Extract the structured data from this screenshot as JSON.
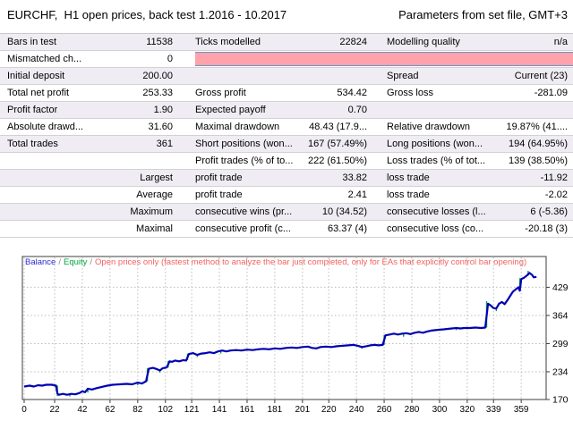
{
  "header": {
    "title": "EURCHF,  H1 open prices, back test 1.2016 - 10.2017",
    "params": "Parameters from set file, GMT+3"
  },
  "table": {
    "rows": [
      {
        "c1": "Bars in test",
        "c2": "11538",
        "c3": "Ticks modelled",
        "c4": "22824",
        "c5": "Modelling quality",
        "c6": "n/a",
        "shade": true,
        "bar": false
      },
      {
        "c1": "Mismatched ch...",
        "c2": "0",
        "c3": "",
        "c4": "",
        "c5": "",
        "c6": "",
        "shade": false,
        "bar": true
      },
      {
        "c1": "Initial deposit",
        "c2": "200.00",
        "c3": "",
        "c4": "",
        "c5": "Spread",
        "c6": "Current (23)",
        "shade": true,
        "bar": false
      },
      {
        "c1": "Total net profit",
        "c2": "253.33",
        "c3": "Gross profit",
        "c4": "534.42",
        "c5": "Gross loss",
        "c6": "-281.09",
        "shade": false,
        "bar": false
      },
      {
        "c1": "Profit factor",
        "c2": "1.90",
        "c3": "Expected payoff",
        "c4": "0.70",
        "c5": "",
        "c6": "",
        "shade": true,
        "bar": false
      },
      {
        "c1": "Absolute drawd...",
        "c2": "31.60",
        "c3": "Maximal drawdown",
        "c4": "48.43 (17.9...",
        "c5": "Relative drawdown",
        "c6": "19.87% (41....",
        "shade": false,
        "bar": false
      },
      {
        "c1": "Total trades",
        "c2": "361",
        "c3": "Short positions (won...",
        "c4": "167 (57.49%)",
        "c5": "Long positions (won...",
        "c6": "194 (64.95%)",
        "shade": true,
        "bar": false
      },
      {
        "c1": "",
        "c2": "",
        "c3": "Profit trades (% of to...",
        "c4": "222 (61.50%)",
        "c5": "Loss trades (% of tot...",
        "c6": "139 (38.50%)",
        "shade": false,
        "bar": false
      },
      {
        "c1": "",
        "c2": "Largest",
        "c3": "profit trade",
        "c4": "33.82",
        "c5": "loss trade",
        "c6": "-11.92",
        "shade": true,
        "bar": false
      },
      {
        "c1": "",
        "c2": "Average",
        "c3": "profit trade",
        "c4": "2.41",
        "c5": "loss trade",
        "c6": "-2.02",
        "shade": false,
        "bar": false
      },
      {
        "c1": "",
        "c2": "Maximum",
        "c3": "consecutive wins (pr...",
        "c4": "10 (34.52)",
        "c5": "consecutive losses (l...",
        "c6": "6 (-5.36)",
        "shade": true,
        "bar": false
      },
      {
        "c1": "",
        "c2": "Maximal",
        "c3": "consecutive profit (c...",
        "c4": "63.37 (4)",
        "c5": "consecutive loss (co...",
        "c6": "-20.18 (3)",
        "shade": false,
        "bar": false
      }
    ]
  },
  "chart_data": {
    "type": "line",
    "legend": {
      "balance_label": "Balance",
      "separator": "/",
      "equity_label": "Equity",
      "note": "Open prices only (fastest method to analyze the bar just completed, only for EAs that explicitly control bar opening)"
    },
    "x_ticks": [
      0,
      22,
      42,
      62,
      82,
      102,
      121,
      141,
      161,
      181,
      201,
      220,
      240,
      260,
      280,
      300,
      320,
      339,
      359
    ],
    "y_ticks": [
      429,
      364,
      299,
      234,
      170
    ],
    "x_domain": [
      0,
      377
    ],
    "y_domain": [
      170,
      500
    ],
    "grid": true,
    "legend_position": "top-left",
    "series": [
      {
        "name": "Balance",
        "color": "#0000b4",
        "points": [
          [
            0,
            200
          ],
          [
            4,
            202
          ],
          [
            7,
            200
          ],
          [
            10,
            203
          ],
          [
            13,
            202
          ],
          [
            16,
            204
          ],
          [
            20,
            204
          ],
          [
            23,
            202
          ],
          [
            24,
            184
          ],
          [
            25,
            181
          ],
          [
            28,
            183
          ],
          [
            31,
            181
          ],
          [
            34,
            183
          ],
          [
            37,
            182
          ],
          [
            40,
            185
          ],
          [
            42,
            189
          ],
          [
            44,
            187
          ],
          [
            46,
            195
          ],
          [
            49,
            193
          ],
          [
            52,
            196
          ],
          [
            56,
            199
          ],
          [
            60,
            202
          ],
          [
            64,
            204
          ],
          [
            69,
            205
          ],
          [
            74,
            206
          ],
          [
            78,
            205
          ],
          [
            82,
            209
          ],
          [
            85,
            207
          ],
          [
            88,
            212
          ],
          [
            90,
            241
          ],
          [
            93,
            243
          ],
          [
            96,
            240
          ],
          [
            98,
            237
          ],
          [
            100,
            242
          ],
          [
            103,
            244
          ],
          [
            105,
            258
          ],
          [
            107,
            257
          ],
          [
            109,
            260
          ],
          [
            112,
            258
          ],
          [
            115,
            261
          ],
          [
            117,
            260
          ],
          [
            119,
            275
          ],
          [
            122,
            277
          ],
          [
            125,
            273
          ],
          [
            128,
            276
          ],
          [
            131,
            277
          ],
          [
            134,
            279
          ],
          [
            137,
            277
          ],
          [
            140,
            281
          ],
          [
            143,
            283
          ],
          [
            146,
            281
          ],
          [
            149,
            283
          ],
          [
            153,
            284
          ],
          [
            157,
            283
          ],
          [
            161,
            285
          ],
          [
            165,
            284
          ],
          [
            169,
            286
          ],
          [
            173,
            287
          ],
          [
            177,
            286
          ],
          [
            181,
            288
          ],
          [
            185,
            287
          ],
          [
            189,
            289
          ],
          [
            193,
            290
          ],
          [
            197,
            289
          ],
          [
            201,
            291
          ],
          [
            205,
            292
          ],
          [
            208,
            289
          ],
          [
            211,
            288
          ],
          [
            214,
            291
          ],
          [
            218,
            292
          ],
          [
            222,
            291
          ],
          [
            226,
            293
          ],
          [
            230,
            294
          ],
          [
            234,
            295
          ],
          [
            238,
            296
          ],
          [
            241,
            294
          ],
          [
            244,
            291
          ],
          [
            247,
            293
          ],
          [
            250,
            295
          ],
          [
            253,
            296
          ],
          [
            256,
            295
          ],
          [
            259,
            296
          ],
          [
            261,
            318
          ],
          [
            264,
            320
          ],
          [
            267,
            322
          ],
          [
            270,
            320
          ],
          [
            273,
            322
          ],
          [
            276,
            323
          ],
          [
            279,
            321
          ],
          [
            282,
            324
          ],
          [
            285,
            326
          ],
          [
            288,
            324
          ],
          [
            291,
            327
          ],
          [
            294,
            329
          ],
          [
            297,
            330
          ],
          [
            300,
            331
          ],
          [
            303,
            332
          ],
          [
            306,
            333
          ],
          [
            309,
            334
          ],
          [
            312,
            335
          ],
          [
            315,
            334
          ],
          [
            318,
            335
          ],
          [
            322,
            335
          ],
          [
            326,
            336
          ],
          [
            330,
            335
          ],
          [
            333,
            336
          ],
          [
            335,
            391
          ],
          [
            337,
            387
          ],
          [
            339,
            381
          ],
          [
            341,
            380
          ],
          [
            343,
            391
          ],
          [
            345,
            395
          ],
          [
            347,
            390
          ],
          [
            349,
            399
          ],
          [
            351,
            409
          ],
          [
            353,
            419
          ],
          [
            355,
            424
          ],
          [
            357,
            429
          ],
          [
            358,
            421
          ],
          [
            359,
            448
          ],
          [
            361,
            451
          ],
          [
            363,
            456
          ],
          [
            365,
            462
          ],
          [
            367,
            457
          ],
          [
            368,
            452
          ],
          [
            370,
            453
          ]
        ]
      },
      {
        "name": "Equity",
        "color": "#00a63c",
        "spikes": [
          [
            24,
            178,
            202
          ],
          [
            33,
            177,
            184
          ],
          [
            46,
            186,
            196
          ],
          [
            82,
            203,
            210
          ],
          [
            89,
            212,
            242
          ],
          [
            98,
            232,
            240
          ],
          [
            104,
            244,
            259
          ],
          [
            118,
            261,
            276
          ],
          [
            125,
            268,
            274
          ],
          [
            142,
            276,
            284
          ],
          [
            244,
            287,
            293
          ],
          [
            260,
            296,
            319
          ],
          [
            274,
            315,
            322
          ],
          [
            312,
            330,
            336
          ],
          [
            334,
            336,
            397
          ],
          [
            341,
            374,
            382
          ],
          [
            358,
            420,
            450
          ],
          [
            364,
            456,
            467
          ]
        ]
      }
    ]
  },
  "colors": {
    "row_shade": "#efedf3",
    "bar_pink": "#ffa2ac",
    "bar_border": "#639ace",
    "balance_line": "#0000b4",
    "equity_line": "#00a63c",
    "note_red": "#f2635f",
    "grid": "#bcbcbc",
    "frame": "#3c3c3c"
  }
}
